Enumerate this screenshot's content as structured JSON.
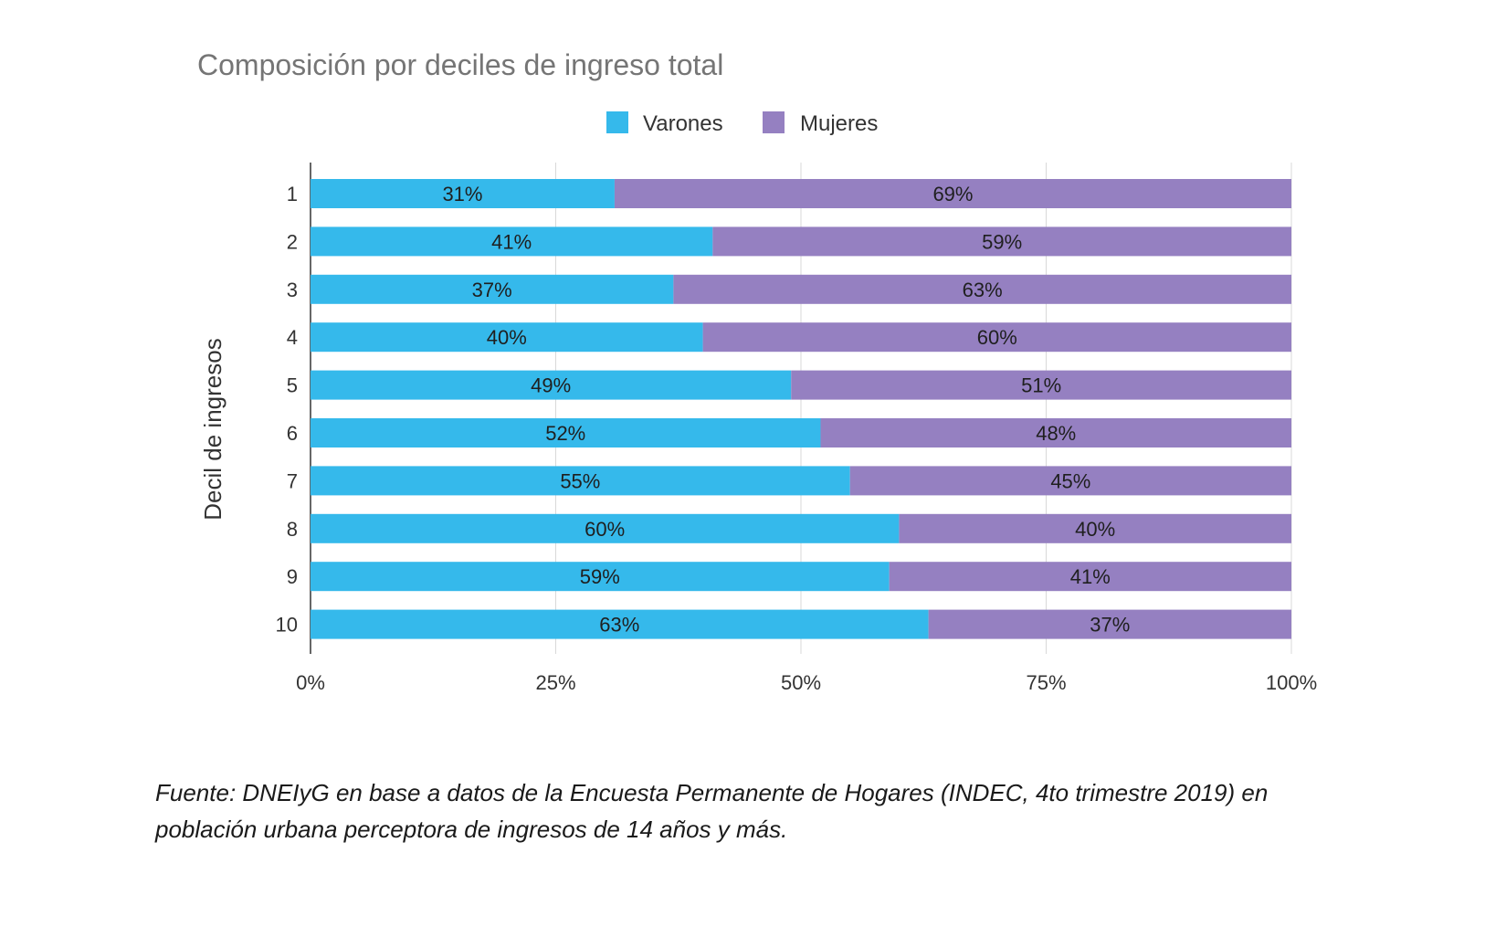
{
  "chart_data": {
    "type": "bar",
    "orientation": "horizontal",
    "stacked": true,
    "title": "Composición por deciles de ingreso total",
    "ylabel": "Decil de ingresos",
    "xlabel": "",
    "categories": [
      "1",
      "2",
      "3",
      "4",
      "5",
      "6",
      "7",
      "8",
      "9",
      "10"
    ],
    "series": [
      {
        "name": "Varones",
        "color": "#35b9eb",
        "values": [
          31,
          41,
          37,
          40,
          49,
          52,
          55,
          60,
          59,
          63
        ],
        "labels": [
          "31%",
          "41%",
          "37%",
          "40%",
          "49%",
          "52%",
          "55%",
          "60%",
          "59%",
          "63%"
        ]
      },
      {
        "name": "Mujeres",
        "color": "#9580c1",
        "values": [
          69,
          59,
          63,
          60,
          51,
          48,
          45,
          40,
          41,
          37
        ],
        "labels": [
          "69%",
          "59%",
          "63%",
          "60%",
          "51%",
          "48%",
          "45%",
          "40%",
          "41%",
          "37%"
        ]
      }
    ],
    "xlim": [
      0,
      100
    ],
    "xticks": [
      0,
      25,
      50,
      75,
      100
    ],
    "xtick_labels": [
      "0%",
      "25%",
      "50%",
      "75%",
      "100%"
    ],
    "grid": true,
    "legend_position": "top"
  },
  "source_note": "Fuente: DNEIyG en base a datos de la Encuesta Permanente de Hogares (INDEC, 4to trimestre 2019) en población urbana perceptora de ingresos de 14 años y más."
}
